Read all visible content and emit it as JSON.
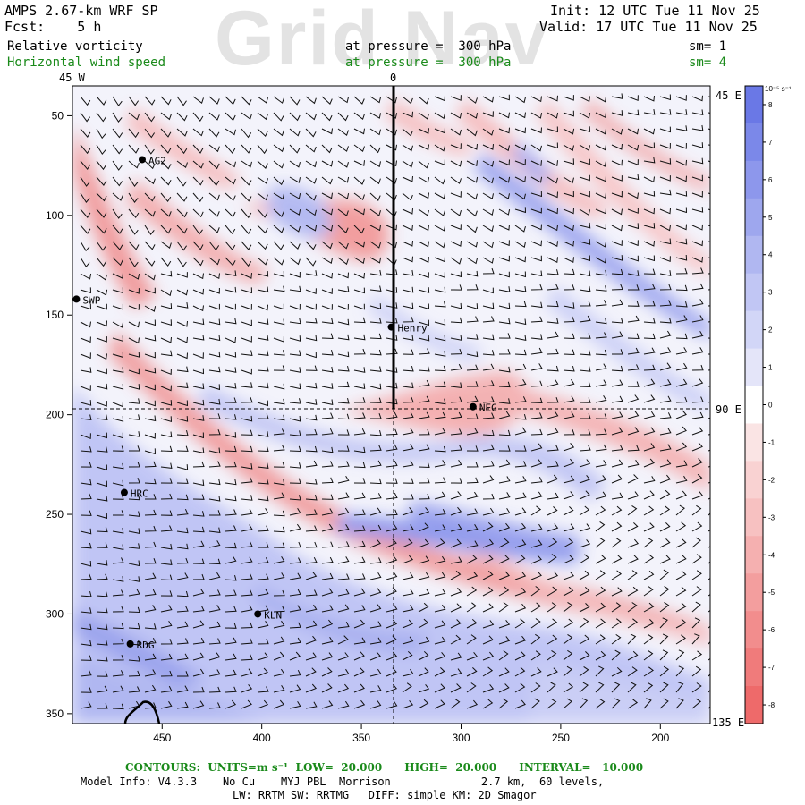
{
  "watermark": "Grid Nav",
  "header": {
    "model": "AMPS 2.67-km WRF SP",
    "fcst": "Fcst:    5 h",
    "init": "Init: 12 UTC Tue 11 Nov 25",
    "valid": "Valid: 17 UTC Tue 11 Nov 25",
    "field1": "Relative vorticity",
    "field1_level": "at pressure =  300 hPa",
    "field1_sm": "sm= 1",
    "field2": "Horizontal wind speed",
    "field2_level": "at pressure =  300 hPa",
    "field2_sm": "sm= 4",
    "field2_color": "#1a8a1a"
  },
  "map_labels": {
    "lon_45w": "45 W",
    "lon_0": "0",
    "lon_45e": "45 E",
    "lon_90e": "90 E",
    "lon_135e": "135 E"
  },
  "stations": [
    {
      "name": "AG2",
      "x": 460,
      "y": 72
    },
    {
      "name": "SWP",
      "x": 493,
      "y": 142
    },
    {
      "name": "Henry",
      "x": 335,
      "y": 156
    },
    {
      "name": "NEG",
      "x": 294,
      "y": 196
    },
    {
      "name": "HRC",
      "x": 469,
      "y": 239
    },
    {
      "name": "KLN",
      "x": 402,
      "y": 300
    },
    {
      "name": "RDG",
      "x": 466,
      "y": 315
    }
  ],
  "chart_data": {
    "type": "heatmap",
    "title": "Relative vorticity at pressure = 300 hPa",
    "xlim": [
      495,
      175
    ],
    "ylim": [
      35,
      355
    ],
    "x_ticks": [
      450,
      400,
      350,
      300,
      250,
      200
    ],
    "y_ticks": [
      50,
      100,
      150,
      200,
      250,
      300,
      350
    ],
    "x_tick_labels": [
      "450",
      "400",
      "350",
      "300",
      "250",
      "200"
    ],
    "y_tick_labels": [
      "50",
      "100",
      "150",
      "200",
      "250",
      "300",
      "350"
    ],
    "colorbar": {
      "unit": "10⁻⁵ s⁻¹",
      "levels": [
        8,
        7,
        6,
        5,
        4,
        3,
        2,
        1,
        0,
        -1,
        -2,
        -3,
        -4,
        -5,
        -6,
        -7,
        -8
      ],
      "level_labels": [
        "8",
        "7",
        "6",
        "5",
        "4",
        "3",
        "2",
        "1",
        "0",
        "-1",
        "-2",
        "-3",
        "-4",
        "-5",
        "-6",
        "-7",
        "-8"
      ],
      "positive_color": "#6a78e6",
      "negative_color": "#ee6a6a"
    },
    "cross_section_line": {
      "x": 335,
      "y_top": 35,
      "y_bottom": 196
    },
    "grid": false
  },
  "footer": {
    "contours_line": "CONTOURS:  UNITS=m s⁻¹  LOW=  20.000      HIGH=  20.000      INTERVAL=   10.000",
    "model_info": "Model Info: V4.3.3    No Cu    MYJ PBL  Morrison              2.7 km,  60 levels,",
    "model_info2": "LW: RRTM SW: RRTMG   DIFF: simple KM: 2D Smagor"
  }
}
